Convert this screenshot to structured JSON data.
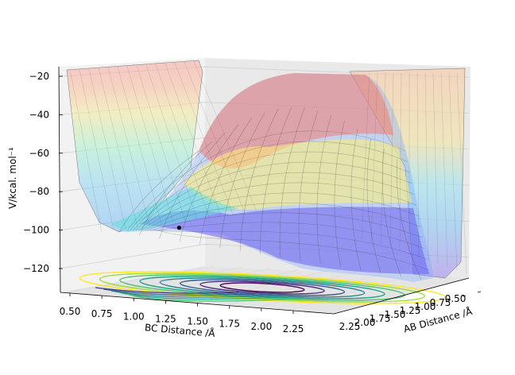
{
  "chart_data": {
    "type": "surface3d",
    "title": "",
    "zlabel": "V/kcal. mol⁻¹",
    "xlabel": "BC Distance /Å",
    "ylabel": "AB Distance /Å",
    "z_ticks": [
      "−20",
      "−40",
      "−60",
      "−80",
      "−100",
      "−120"
    ],
    "z_tick_values": [
      -20,
      -40,
      -60,
      -80,
      -100,
      -120
    ],
    "x_ticks": [
      "0.50",
      "0.75",
      "1.00",
      "1.25",
      "1.50",
      "1.75",
      "2.00",
      "2.25"
    ],
    "x_tick_values": [
      0.5,
      0.75,
      1.0,
      1.25,
      1.5,
      1.75,
      2.0,
      2.25
    ],
    "y_ticks": [
      "2.25",
      "2.00",
      "1.75",
      "1.50",
      "1.25",
      "1.00",
      "0.75",
      "0.50"
    ],
    "y_tick_values": [
      2.25,
      2.0,
      1.75,
      1.5,
      1.25,
      1.0,
      0.75,
      0.5
    ],
    "xlim": [
      0.5,
      2.4
    ],
    "ylim": [
      0.5,
      2.4
    ],
    "zlim": [
      -135,
      -20
    ],
    "grid": true,
    "marker": {
      "x": 1.25,
      "y": 2.25,
      "z": -100
    },
    "colormap_surface": "jet",
    "colormap_contour": "viridis"
  }
}
